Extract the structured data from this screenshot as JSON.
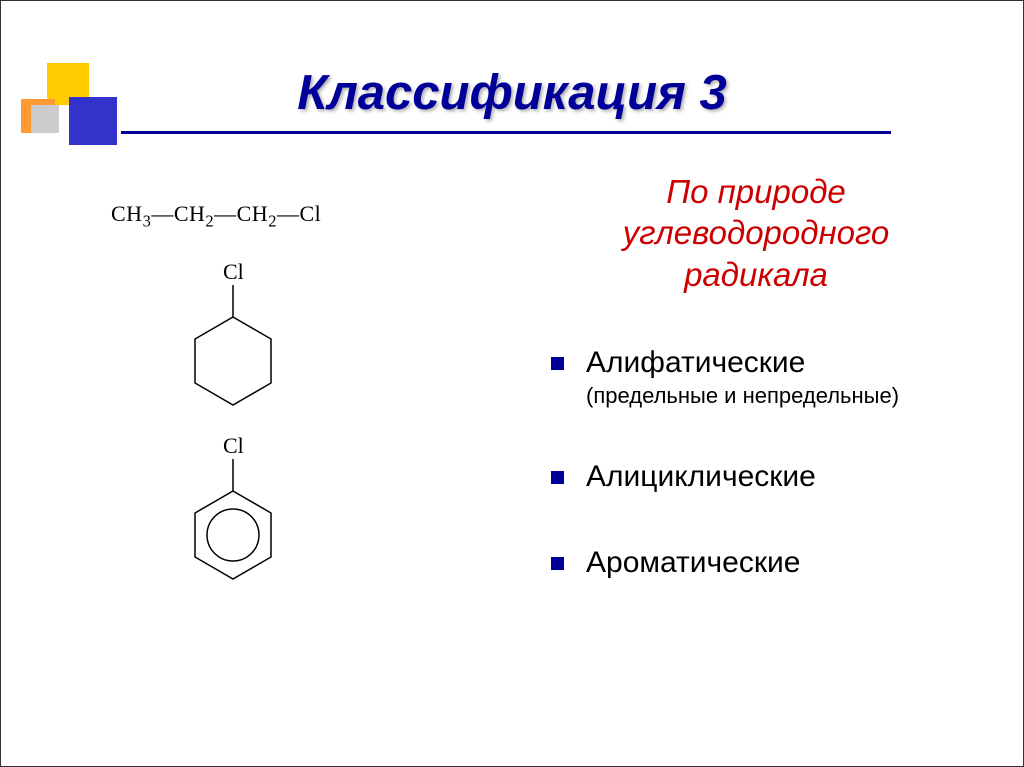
{
  "title": "Классификация 3",
  "subtitle_l1": "По природе",
  "subtitle_l2": "углеводородного",
  "subtitle_l3": "радикала",
  "formula_chain": "CH<sub class='sub'>3</sub>—CH<sub class='sub'>2</sub>—CH<sub class='sub'>2</sub>—Cl",
  "label_cl_1": "Cl",
  "label_cl_2": "Cl",
  "bullets": [
    {
      "main": "Алифатические",
      "sub": "(предельные и непредельные)"
    },
    {
      "main": "Алициклические",
      "sub": ""
    },
    {
      "main": "Ароматические",
      "sub": ""
    }
  ],
  "colors": {
    "title": "#000099",
    "subtitle": "#cc0000",
    "bullet": "#000099",
    "deco_yellow": "#ffcc00",
    "deco_orange": "#ff9933",
    "deco_blue": "#3333cc",
    "deco_gray": "#cccccc"
  }
}
